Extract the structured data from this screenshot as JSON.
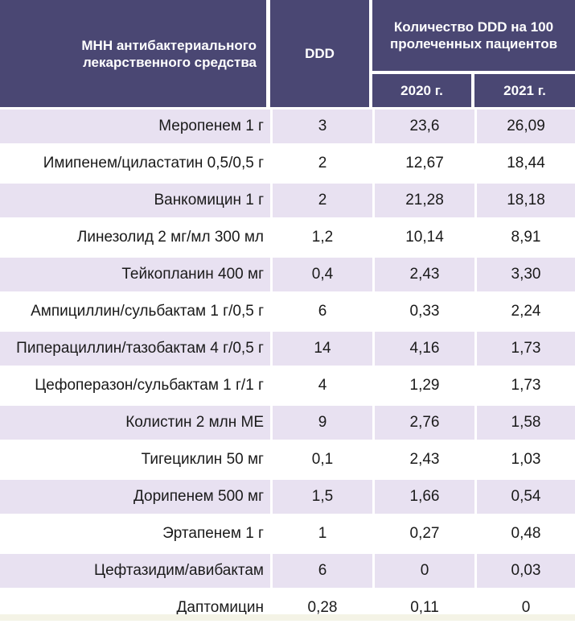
{
  "header": {
    "name_col": "МНН антибактериального лекарственного средства",
    "ddd_col": "DDD",
    "group_col": "Количество DDD на 100 пролеченных пациентов",
    "year1": "2020 г.",
    "year2": "2021 г."
  },
  "colors": {
    "header_bg": "#4a4773",
    "row_odd": "#e8e1f1",
    "row_even": "#ffffff"
  },
  "rows": [
    {
      "name": "Меропенем 1 г",
      "ddd": "3",
      "y2020": "23,6",
      "y2021": "26,09"
    },
    {
      "name": "Имипенем/циластатин 0,5/0,5 г",
      "ddd": "2",
      "y2020": "12,67",
      "y2021": "18,44"
    },
    {
      "name": "Ванкомицин 1 г",
      "ddd": "2",
      "y2020": "21,28",
      "y2021": "18,18"
    },
    {
      "name": "Линезолид 2 мг/мл 300 мл",
      "ddd": "1,2",
      "y2020": "10,14",
      "y2021": "8,91"
    },
    {
      "name": "Тейкопланин 400 мг",
      "ddd": "0,4",
      "y2020": "2,43",
      "y2021": "3,30"
    },
    {
      "name": "Ампициллин/сульбактам 1 г/0,5 г",
      "ddd": "6",
      "y2020": "0,33",
      "y2021": "2,24"
    },
    {
      "name": "Пиперациллин/тазобактам 4 г/0,5 г",
      "ddd": "14",
      "y2020": "4,16",
      "y2021": "1,73"
    },
    {
      "name": "Цефоперазон/сульбактам 1 г/1 г",
      "ddd": "4",
      "y2020": "1,29",
      "y2021": "1,73"
    },
    {
      "name": "Колистин 2 млн МЕ",
      "ddd": "9",
      "y2020": "2,76",
      "y2021": "1,58"
    },
    {
      "name": "Тигециклин 50 мг",
      "ddd": "0,1",
      "y2020": "2,43",
      "y2021": "1,03"
    },
    {
      "name": "Дорипенем 500 мг",
      "ddd": "1,5",
      "y2020": "1,66",
      "y2021": "0,54"
    },
    {
      "name": "Эртапенем 1 г",
      "ddd": "1",
      "y2020": "0,27",
      "y2021": "0,48"
    },
    {
      "name": "Цефтазидим/авибактам",
      "ddd": "6",
      "y2020": "0",
      "y2021": "0,03"
    },
    {
      "name": "Даптомицин",
      "ddd": "0,28",
      "y2020": "0,11",
      "y2021": "0"
    }
  ]
}
